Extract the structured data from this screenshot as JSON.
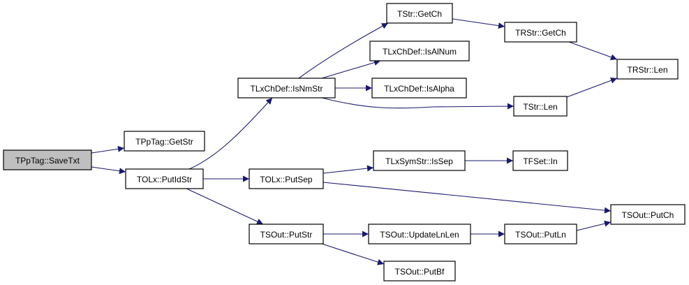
{
  "graph": {
    "edge_color": "#191970",
    "root_fill": "#bfbfbf",
    "nodes": [
      {
        "id": "savetxt",
        "label": "TPpTag::SaveTxt",
        "root": true
      },
      {
        "id": "getstr",
        "label": "TPpTag::GetStr"
      },
      {
        "id": "putidstr",
        "label": "TOLx::PutIdStr"
      },
      {
        "id": "isnmstr",
        "label": "TLxChDef::IsNmStr"
      },
      {
        "id": "putsep",
        "label": "TOLx::PutSep"
      },
      {
        "id": "putstr",
        "label": "TSOut::PutStr"
      },
      {
        "id": "tstrgetch",
        "label": "TStr::GetCh"
      },
      {
        "id": "isalnum",
        "label": "TLxChDef::IsAlNum"
      },
      {
        "id": "isalpha",
        "label": "TLxChDef::IsAlpha"
      },
      {
        "id": "tstrlen",
        "label": "TStr::Len"
      },
      {
        "id": "trstrgetch",
        "label": "TRStr::GetCh"
      },
      {
        "id": "trstrlen",
        "label": "TRStr::Len"
      },
      {
        "id": "issep",
        "label": "TLxSymStr::IsSep"
      },
      {
        "id": "tfsetin",
        "label": "TFSet::In"
      },
      {
        "id": "putch",
        "label": "TSOut::PutCh"
      },
      {
        "id": "updatelnlen",
        "label": "TSOut::UpdateLnLen"
      },
      {
        "id": "putln",
        "label": "TSOut::PutLn"
      },
      {
        "id": "putbf",
        "label": "TSOut::PutBf"
      }
    ],
    "edges": [
      [
        "savetxt",
        "getstr"
      ],
      [
        "savetxt",
        "putidstr"
      ],
      [
        "putidstr",
        "isnmstr"
      ],
      [
        "putidstr",
        "putsep"
      ],
      [
        "putidstr",
        "putstr"
      ],
      [
        "isnmstr",
        "tstrgetch"
      ],
      [
        "isnmstr",
        "isalnum"
      ],
      [
        "isnmstr",
        "isalpha"
      ],
      [
        "isnmstr",
        "tstrlen"
      ],
      [
        "tstrgetch",
        "trstrgetch"
      ],
      [
        "trstrgetch",
        "trstrlen"
      ],
      [
        "tstrlen",
        "trstrlen"
      ],
      [
        "putsep",
        "issep"
      ],
      [
        "putsep",
        "putch"
      ],
      [
        "issep",
        "tfsetin"
      ],
      [
        "putstr",
        "updatelnlen"
      ],
      [
        "putstr",
        "putbf"
      ],
      [
        "updatelnlen",
        "putln"
      ],
      [
        "putln",
        "putch"
      ]
    ]
  }
}
